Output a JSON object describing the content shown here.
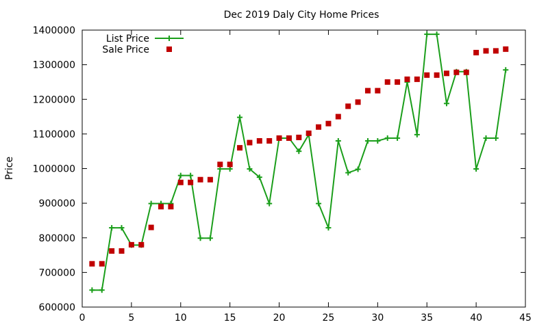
{
  "chart_data": {
    "type": "line",
    "title": "Dec 2019 Daly City Home Prices",
    "xlabel": "",
    "ylabel": "Price",
    "xlim": [
      0,
      45
    ],
    "ylim": [
      600000,
      1400000
    ],
    "x_ticks": [
      0,
      5,
      10,
      15,
      20,
      25,
      30,
      35,
      40,
      45
    ],
    "y_ticks": [
      600000,
      700000,
      800000,
      900000,
      1000000,
      1100000,
      1200000,
      1300000,
      1400000
    ],
    "grid": false,
    "legend_position": "top-left",
    "series": [
      {
        "name": "List Price",
        "style": "line-plus",
        "color": "#1a9e1a",
        "x": [
          1,
          2,
          3,
          4,
          5,
          6,
          7,
          8,
          9,
          10,
          11,
          12,
          13,
          14,
          15,
          16,
          17,
          18,
          19,
          20,
          21,
          22,
          23,
          24,
          25,
          26,
          27,
          28,
          29,
          30,
          31,
          32,
          33,
          34,
          35,
          36,
          37,
          38,
          39,
          40,
          41,
          42,
          43
        ],
        "values": [
          649000,
          649000,
          829000,
          829000,
          779000,
          779000,
          899000,
          899000,
          899000,
          980000,
          980000,
          799000,
          799000,
          999000,
          999000,
          1148000,
          999000,
          975000,
          899000,
          1088000,
          1088000,
          1050000,
          1098000,
          899000,
          829000,
          1080000,
          988000,
          998000,
          1080000,
          1080000,
          1088000,
          1088000,
          1250000,
          1098000,
          1388000,
          1388000,
          1188000,
          1280000,
          1280000,
          999000,
          1088000,
          1088000,
          1285000
        ]
      },
      {
        "name": "Sale Price",
        "style": "square-points",
        "color": "#c00000",
        "x": [
          1,
          2,
          3,
          4,
          5,
          6,
          7,
          8,
          9,
          10,
          11,
          12,
          13,
          14,
          15,
          16,
          17,
          18,
          19,
          20,
          21,
          22,
          23,
          24,
          25,
          26,
          27,
          28,
          29,
          30,
          31,
          32,
          33,
          34,
          35,
          36,
          37,
          38,
          39,
          40,
          41,
          42,
          43
        ],
        "values": [
          725000,
          725000,
          762000,
          762000,
          780000,
          780000,
          830000,
          890000,
          890000,
          960000,
          960000,
          968000,
          968000,
          1012000,
          1012000,
          1060000,
          1075000,
          1080000,
          1080000,
          1088000,
          1088000,
          1090000,
          1102000,
          1120000,
          1130000,
          1150000,
          1180000,
          1192000,
          1225000,
          1225000,
          1250000,
          1250000,
          1258000,
          1258000,
          1270000,
          1270000,
          1275000,
          1278000,
          1278000,
          1335000,
          1340000,
          1340000,
          1345000
        ]
      }
    ]
  }
}
